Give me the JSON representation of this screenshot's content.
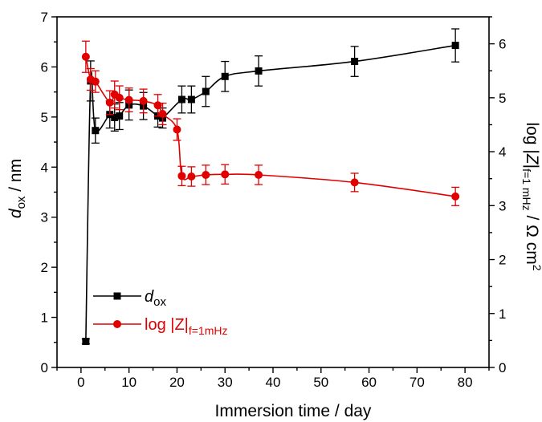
{
  "chart_data": {
    "type": "line",
    "xlabel": "Immersion time / day",
    "ylabel_left": {
      "main": "d",
      "sub": "ox",
      "unit": " / nm"
    },
    "ylabel_right": {
      "pre": "log |",
      "Z": "Z",
      "bar": "|",
      "sub": "f=1 mHz",
      "unit": " / Ω cm",
      "sup": "2"
    },
    "xlim": [
      -5,
      85
    ],
    "xticks": [
      0,
      10,
      20,
      30,
      40,
      50,
      60,
      70,
      80
    ],
    "ylim_left": [
      0,
      7
    ],
    "yticks_left": [
      0,
      1,
      2,
      3,
      4,
      5,
      6,
      7
    ],
    "ylim_right": [
      0,
      6.5
    ],
    "yticks_right": [
      0,
      1,
      2,
      3,
      4,
      5,
      6
    ],
    "grid": false,
    "legend_position": "bottom-left",
    "series": [
      {
        "name": "d",
        "name_sub": "ox",
        "axis": "left",
        "color": "#000000",
        "marker": "square",
        "x": [
          1,
          2,
          3,
          6,
          7,
          8,
          10,
          13,
          16,
          17,
          21,
          23,
          26,
          30,
          37,
          57,
          78
        ],
        "y": [
          0.52,
          5.72,
          4.73,
          5.05,
          4.99,
          5.02,
          5.24,
          5.22,
          5.02,
          4.98,
          5.35,
          5.35,
          5.51,
          5.81,
          5.92,
          6.11,
          6.43
        ],
        "err": [
          0.05,
          0.4,
          0.25,
          0.27,
          0.27,
          0.27,
          0.3,
          0.27,
          0.22,
          0.2,
          0.27,
          0.27,
          0.3,
          0.3,
          0.3,
          0.3,
          0.33
        ]
      },
      {
        "name": "log |Z|",
        "name_sub": "f=1mHz",
        "axis": "right",
        "color": "#e00000",
        "marker": "circle",
        "x": [
          1,
          2,
          3,
          6,
          7,
          8,
          10,
          13,
          16,
          17,
          20,
          21,
          23,
          26,
          30,
          37,
          57,
          78
        ],
        "y": [
          5.76,
          5.34,
          5.3,
          4.91,
          5.06,
          5.0,
          4.96,
          4.94,
          4.86,
          4.7,
          4.41,
          3.55,
          3.54,
          3.57,
          3.58,
          3.57,
          3.43,
          3.17
        ],
        "err": [
          0.29,
          0.2,
          0.2,
          0.22,
          0.25,
          0.22,
          0.22,
          0.22,
          0.2,
          0.2,
          0.2,
          0.18,
          0.18,
          0.18,
          0.18,
          0.18,
          0.17,
          0.17
        ]
      }
    ]
  }
}
